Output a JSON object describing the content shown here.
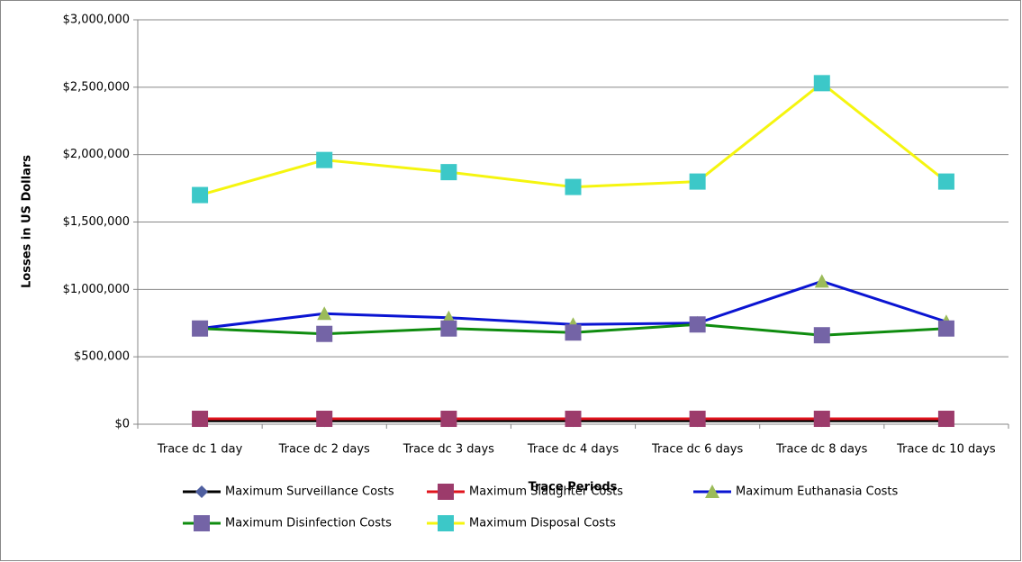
{
  "chart_data": {
    "type": "line",
    "x_label": "Trace Periods",
    "y_label": "Losses in US Dollars",
    "categories": [
      "Trace dc 1 day",
      "Trace dc 2 days",
      "Trace dc 3 days",
      "Trace dc 4 days",
      "Trace dc 6 days",
      "Trace dc 8 days",
      "Trace dc 10 days"
    ],
    "series": [
      {
        "name": "Maximum Surveillance Costs",
        "color": "#000000",
        "marker": "diamond",
        "marker_color": "#4f5fa0",
        "values": [
          25000,
          25000,
          25000,
          25000,
          25000,
          25000,
          25000
        ]
      },
      {
        "name": "Maximum Slaughter Costs",
        "color": "#e0141e",
        "marker": "square",
        "marker_color": "#9c3b6b",
        "values": [
          40000,
          40000,
          40000,
          40000,
          40000,
          40000,
          40000
        ]
      },
      {
        "name": "Maximum Euthanasia Costs",
        "color": "#0a14d2",
        "marker": "triangle",
        "marker_color": "#9bbb59",
        "values": [
          710000,
          820000,
          790000,
          740000,
          750000,
          1060000,
          760000
        ]
      },
      {
        "name": "Maximum Disinfection Costs",
        "color": "#0f8c0f",
        "marker": "square",
        "marker_color": "#7464a6",
        "values": [
          710000,
          670000,
          710000,
          680000,
          740000,
          660000,
          710000
        ]
      },
      {
        "name": "Maximum Disposal Costs",
        "color": "#f5f50f",
        "marker": "square",
        "marker_color": "#3cc8c8",
        "values": [
          1700000,
          1960000,
          1870000,
          1760000,
          1800000,
          2530000,
          1800000
        ]
      }
    ],
    "ylim": [
      0,
      3000000
    ],
    "yticks": [
      {
        "value": 0,
        "label": "$0"
      },
      {
        "value": 500000,
        "label": "$500,000"
      },
      {
        "value": 1000000,
        "label": "$1,000,000"
      },
      {
        "value": 1500000,
        "label": "$1,500,000"
      },
      {
        "value": 2000000,
        "label": "$2,000,000"
      },
      {
        "value": 2500000,
        "label": "$2,500,000"
      },
      {
        "value": 3000000,
        "label": "$3,000,000"
      }
    ],
    "grid": true,
    "legend": "bottom"
  }
}
